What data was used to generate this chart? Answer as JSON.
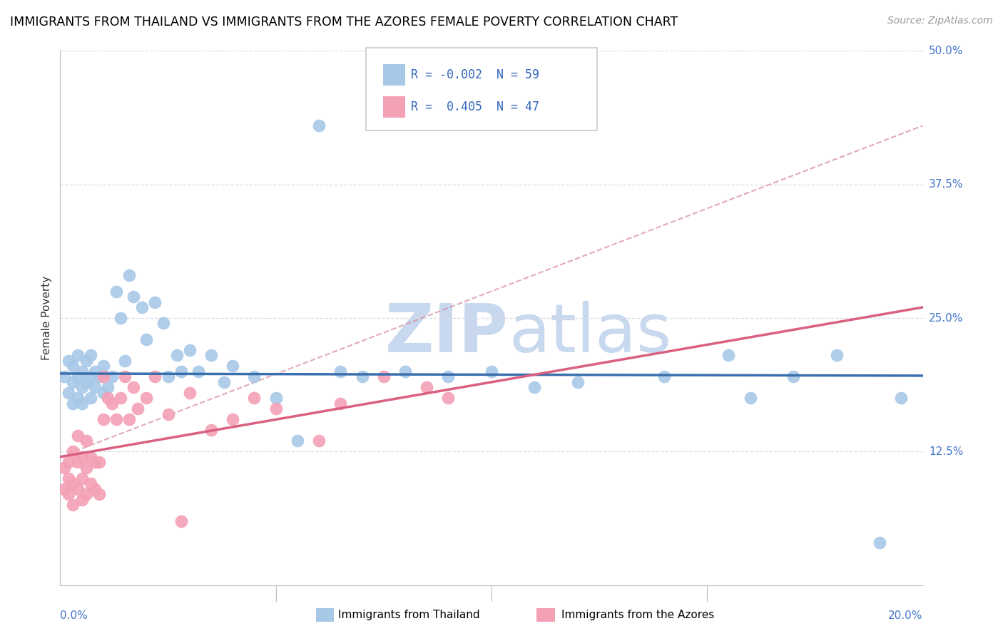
{
  "title": "IMMIGRANTS FROM THAILAND VS IMMIGRANTS FROM THE AZORES FEMALE POVERTY CORRELATION CHART",
  "source": "Source: ZipAtlas.com",
  "ylabel_label": "Female Poverty",
  "legend_blue_label": "Immigrants from Thailand",
  "legend_pink_label": "Immigrants from the Azores",
  "blue_color": "#a8c8e8",
  "pink_color": "#f4a0b5",
  "blue_line_color": "#3a6fad",
  "pink_line_color": "#d96080",
  "dash_line_color": "#d4889a",
  "watermark_color": "#c8d8ee",
  "background_color": "#ffffff",
  "grid_color": "#d8dde8",
  "xlim": [
    0.0,
    0.2
  ],
  "ylim": [
    0.0,
    0.5
  ],
  "blue_scatter_x": [
    0.001,
    0.002,
    0.002,
    0.003,
    0.003,
    0.003,
    0.004,
    0.004,
    0.004,
    0.005,
    0.005,
    0.005,
    0.006,
    0.006,
    0.007,
    0.007,
    0.007,
    0.008,
    0.008,
    0.009,
    0.01,
    0.01,
    0.011,
    0.012,
    0.013,
    0.014,
    0.015,
    0.016,
    0.017,
    0.019,
    0.02,
    0.022,
    0.024,
    0.025,
    0.027,
    0.028,
    0.03,
    0.032,
    0.035,
    0.038,
    0.04,
    0.045,
    0.05,
    0.055,
    0.06,
    0.065,
    0.07,
    0.08,
    0.09,
    0.1,
    0.11,
    0.12,
    0.14,
    0.155,
    0.16,
    0.17,
    0.18,
    0.19,
    0.195
  ],
  "blue_scatter_y": [
    0.195,
    0.18,
    0.21,
    0.17,
    0.19,
    0.205,
    0.175,
    0.195,
    0.215,
    0.17,
    0.185,
    0.2,
    0.19,
    0.21,
    0.175,
    0.195,
    0.215,
    0.185,
    0.2,
    0.195,
    0.18,
    0.205,
    0.185,
    0.195,
    0.275,
    0.25,
    0.21,
    0.29,
    0.27,
    0.26,
    0.23,
    0.265,
    0.245,
    0.195,
    0.215,
    0.2,
    0.22,
    0.2,
    0.215,
    0.19,
    0.205,
    0.195,
    0.175,
    0.135,
    0.43,
    0.2,
    0.195,
    0.2,
    0.195,
    0.2,
    0.185,
    0.19,
    0.195,
    0.215,
    0.175,
    0.195,
    0.215,
    0.04,
    0.175
  ],
  "pink_scatter_x": [
    0.001,
    0.001,
    0.002,
    0.002,
    0.002,
    0.003,
    0.003,
    0.003,
    0.004,
    0.004,
    0.004,
    0.005,
    0.005,
    0.005,
    0.006,
    0.006,
    0.006,
    0.007,
    0.007,
    0.008,
    0.008,
    0.009,
    0.009,
    0.01,
    0.01,
    0.011,
    0.012,
    0.013,
    0.014,
    0.015,
    0.016,
    0.017,
    0.018,
    0.02,
    0.022,
    0.025,
    0.028,
    0.03,
    0.035,
    0.04,
    0.045,
    0.05,
    0.06,
    0.065,
    0.075,
    0.085,
    0.09
  ],
  "pink_scatter_y": [
    0.09,
    0.11,
    0.085,
    0.1,
    0.115,
    0.075,
    0.095,
    0.125,
    0.09,
    0.115,
    0.14,
    0.08,
    0.1,
    0.12,
    0.085,
    0.11,
    0.135,
    0.095,
    0.12,
    0.09,
    0.115,
    0.085,
    0.115,
    0.195,
    0.155,
    0.175,
    0.17,
    0.155,
    0.175,
    0.195,
    0.155,
    0.185,
    0.165,
    0.175,
    0.195,
    0.16,
    0.06,
    0.18,
    0.145,
    0.155,
    0.175,
    0.165,
    0.135,
    0.17,
    0.195,
    0.185,
    0.175
  ],
  "blue_R": -0.002,
  "blue_N": 59,
  "pink_R": 0.405,
  "pink_N": 47,
  "blue_line_y_intercept": 0.198,
  "blue_line_slope": -0.01,
  "pink_line_y_intercept": 0.12,
  "pink_line_slope": 0.7
}
